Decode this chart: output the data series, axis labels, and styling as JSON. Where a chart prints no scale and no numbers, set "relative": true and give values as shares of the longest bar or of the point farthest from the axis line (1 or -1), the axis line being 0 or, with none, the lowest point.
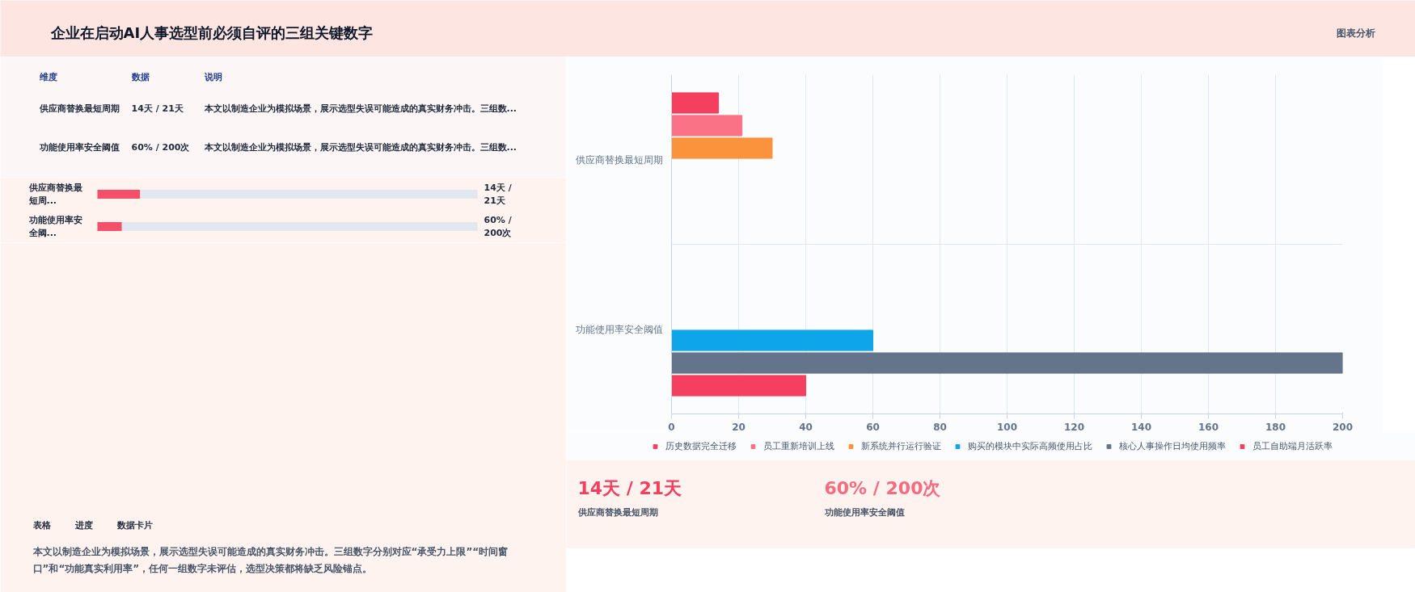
{
  "chart_data": [
    {
      "type": "other",
      "title": "企业在启动AI人事选型前必须自评的三组关键数字",
      "annotations": [
        "图表分析"
      ]
    },
    {
      "type": "other",
      "annotations": [
        "维度",
        "数据",
        "说明",
        "供应商替换最短周期",
        "14天 / 21天",
        "本文以制造企业为模拟场景，展示选型失误可能造成的真实财务冲击。三组数...",
        "功能使用率安全阈值",
        "60% / 200次",
        "本文以制造企业为模拟场景，展示选型失误可能造成的真实财务冲击。三组数..."
      ]
    },
    {
      "type": "bar",
      "orientation": "horizontal",
      "relative": true,
      "categories": [
        "供应商替换最短周...",
        "功能使用率安全阈..."
      ],
      "values": [
        1,
        0.57
      ],
      "annotations": [
        "14天 / 21天",
        "60% / 200次"
      ],
      "color": "#f4506a"
    },
    {
      "type": "other",
      "annotations": [
        "表格",
        "进度",
        "数据卡片",
        "本文以制造企业为模拟场景，展示选型失误可能造成的真实财务冲击。三组数字分别对应“承受力上限”“时间窗口”和“功能真实利用率”，任何一组数字未评估，选型决策都将缺乏风险锚点。"
      ]
    },
    {
      "type": "bar",
      "orientation": "horizontal",
      "categories": [
        "供应商替换最短周期",
        "功能使用率安全阈值"
      ],
      "series": [
        {
          "name": "历史数据完全迁移",
          "color": "#f43f5e",
          "values": [
            14,
            null
          ]
        },
        {
          "name": "员工重新培训上线",
          "color": "#fb7185",
          "values": [
            21,
            null
          ]
        },
        {
          "name": "新系统并行运行验证",
          "color": "#fb923c",
          "values": [
            30,
            null
          ]
        },
        {
          "name": "购买的模块中实际高频使用占比",
          "color": "#0ea5e9",
          "values": [
            null,
            60
          ]
        },
        {
          "name": "核心人事操作日均使用频率",
          "color": "#64748b",
          "values": [
            null,
            200
          ]
        },
        {
          "name": "员工自助端月活跃率",
          "color": "#f43f5e",
          "values": [
            null,
            40
          ]
        }
      ],
      "xlim": [
        0,
        200
      ],
      "xticks": [
        0,
        20,
        40,
        60,
        80,
        100,
        120,
        140,
        160,
        180,
        200
      ],
      "grid": true,
      "legend": "bottom"
    },
    {
      "type": "other",
      "annotations": [
        "14天 / 21天",
        "供应商替换最短周期",
        "60% / 200次",
        "功能使用率安全阈值"
      ]
    }
  ]
}
